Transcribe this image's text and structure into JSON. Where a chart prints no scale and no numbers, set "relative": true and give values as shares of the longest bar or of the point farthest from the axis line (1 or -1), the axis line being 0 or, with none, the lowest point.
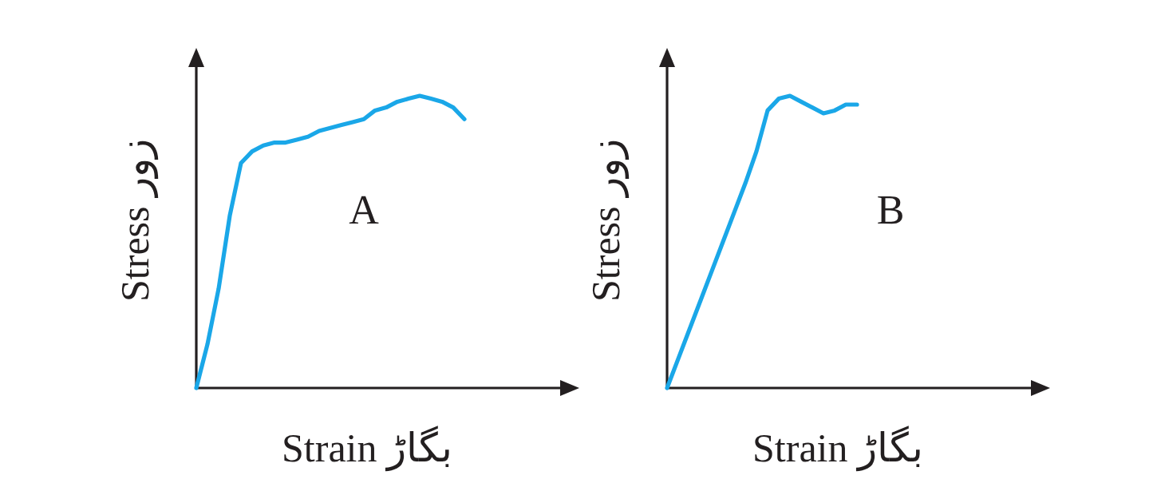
{
  "chart_data": [
    {
      "type": "line",
      "relative": true,
      "xlabel": "Strain بگاڑ",
      "ylabel": "Stress زور",
      "annotations": [
        "A"
      ],
      "categories": [
        null,
        null,
        null,
        null,
        null,
        null,
        null,
        null,
        null,
        null,
        null,
        null,
        null,
        null,
        null,
        null,
        null,
        null,
        null,
        null,
        null,
        null,
        null,
        null,
        null
      ],
      "series": [
        {
          "color": "#1aa7e8",
          "values": [
            0,
            0.15,
            0.34,
            0.59,
            0.77,
            0.81,
            0.83,
            0.84,
            0.84,
            0.85,
            0.86,
            0.88,
            0.89,
            0.9,
            0.91,
            0.92,
            0.95,
            0.96,
            0.98,
            0.99,
            1,
            0.99,
            0.98,
            0.96,
            0.92
          ]
        }
      ]
    },
    {
      "type": "line",
      "relative": true,
      "xlabel": "Strain بگاڑ",
      "ylabel": "Stress زور",
      "annotations": [
        "B"
      ],
      "categories": [
        null,
        null,
        null,
        null,
        null,
        null,
        null,
        null,
        null,
        null,
        null,
        null,
        null,
        null,
        null,
        null,
        null,
        null
      ],
      "series": [
        {
          "color": "#1aa7e8",
          "values": [
            0,
            0.1,
            0.2,
            0.3,
            0.4,
            0.5,
            0.6,
            0.7,
            0.81,
            0.95,
            0.99,
            1,
            0.98,
            0.96,
            0.94,
            0.95,
            0.97,
            0.97
          ]
        }
      ]
    }
  ]
}
